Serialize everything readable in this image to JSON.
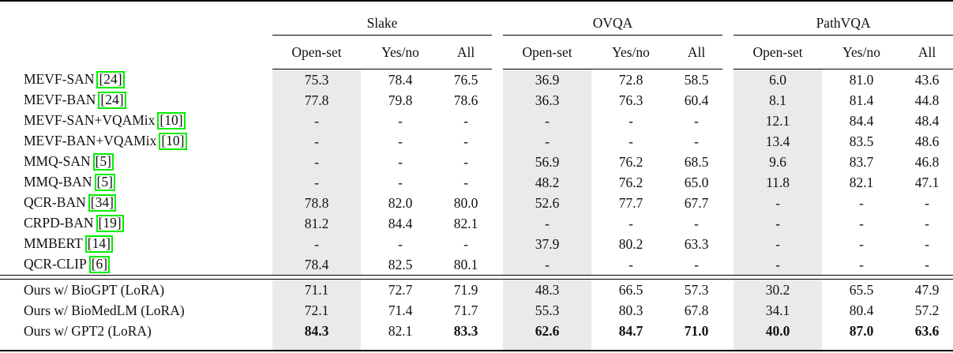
{
  "table": {
    "groups": [
      {
        "label": "Slake"
      },
      {
        "label": "OVQA"
      },
      {
        "label": "PathVQA"
      }
    ],
    "subheaders": [
      "Open-set",
      "Yes/no",
      "All"
    ],
    "rows": [
      {
        "method": "MEVF-SAN",
        "cite": "[24]",
        "values": [
          "75.3",
          "78.4",
          "76.5",
          "36.9",
          "72.8",
          "58.5",
          "6.0",
          "81.0",
          "43.6"
        ]
      },
      {
        "method": "MEVF-BAN",
        "cite": "[24]",
        "values": [
          "77.8",
          "79.8",
          "78.6",
          "36.3",
          "76.3",
          "60.4",
          "8.1",
          "81.4",
          "44.8"
        ]
      },
      {
        "method": "MEVF-SAN+VQAMix",
        "cite": "[10]",
        "values": [
          "-",
          "-",
          "-",
          "-",
          "-",
          "-",
          "12.1",
          "84.4",
          "48.4"
        ]
      },
      {
        "method": "MEVF-BAN+VQAMix",
        "cite": "[10]",
        "values": [
          "-",
          "-",
          "-",
          "-",
          "-",
          "-",
          "13.4",
          "83.5",
          "48.6"
        ]
      },
      {
        "method": "MMQ-SAN",
        "cite": "[5]",
        "values": [
          "-",
          "-",
          "-",
          "56.9",
          "76.2",
          "68.5",
          "9.6",
          "83.7",
          "46.8"
        ]
      },
      {
        "method": "MMQ-BAN",
        "cite": "[5]",
        "values": [
          "-",
          "-",
          "-",
          "48.2",
          "76.2",
          "65.0",
          "11.8",
          "82.1",
          "47.1"
        ]
      },
      {
        "method": "QCR-BAN",
        "cite": "[34]",
        "values": [
          "78.8",
          "82.0",
          "80.0",
          "52.6",
          "77.7",
          "67.7",
          "-",
          "-",
          "-"
        ]
      },
      {
        "method": "CRPD-BAN",
        "cite": "[19]",
        "values": [
          "81.2",
          "84.4",
          "82.1",
          "-",
          "-",
          "-",
          "-",
          "-",
          "-"
        ]
      },
      {
        "method": "MMBERT",
        "cite": "[14]",
        "values": [
          "-",
          "-",
          "-",
          "37.9",
          "80.2",
          "63.3",
          "-",
          "-",
          "-"
        ]
      },
      {
        "method": "QCR-CLIP",
        "cite": "[6]",
        "values": [
          "78.4",
          "82.5",
          "80.1",
          "-",
          "-",
          "-",
          "-",
          "-",
          "-"
        ]
      }
    ],
    "ours_rows": [
      {
        "method": "Ours w/ BioGPT (LoRA)",
        "values": [
          "71.1",
          "72.7",
          "71.9",
          "48.3",
          "66.5",
          "57.3",
          "30.2",
          "65.5",
          "47.9"
        ],
        "bold": []
      },
      {
        "method": "Ours w/ BioMedLM (LoRA)",
        "values": [
          "72.1",
          "71.4",
          "71.7",
          "55.3",
          "80.3",
          "67.8",
          "34.1",
          "80.4",
          "57.2"
        ],
        "bold": []
      },
      {
        "method": "Ours w/ GPT2 (LoRA)",
        "values": [
          "84.3",
          "82.1",
          "83.3",
          "62.6",
          "84.7",
          "71.0",
          "40.0",
          "87.0",
          "63.6"
        ],
        "bold": [
          0,
          2,
          3,
          4,
          5,
          6,
          7,
          8
        ]
      }
    ]
  },
  "colors": {
    "open_set_column_highlight": "#eaeaea",
    "citation_box_border": "#00ee00",
    "rule_color": "#000000"
  }
}
